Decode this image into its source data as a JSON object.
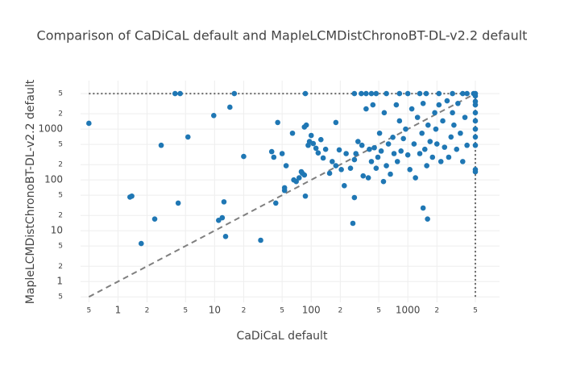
{
  "chart_data": {
    "type": "scatter",
    "title": "Comparison of  CaDiCaL default and  MapleLCMDistChronoBT-DL-v2.2 default",
    "x_label": "CaDiCaL default",
    "y_label": "MapleLCMDistChronoBT-DL-v2.2 default",
    "log_x": true,
    "log_y": true,
    "grid": true,
    "color": "#1f77b4",
    "xlim": [
      0.41,
      8900
    ],
    "ylim": [
      0.39,
      9000
    ],
    "xticks": [
      {
        "value": 0.5,
        "label": "5"
      },
      1,
      2,
      {
        "value": 5,
        "label": "5"
      },
      10,
      {
        "value": 20,
        "label": "2"
      },
      {
        "value": 50,
        "label": "5"
      },
      100,
      {
        "value": 200,
        "label": "2"
      },
      {
        "value": 500,
        "label": "5"
      },
      1000,
      {
        "value": 2000,
        "label": "2"
      },
      {
        "value": 5000,
        "label": "5"
      }
    ],
    "yticks": [
      {
        "value": 0.5,
        "label": "5"
      },
      1,
      2,
      {
        "value": 5,
        "label": "5"
      },
      10,
      {
        "value": 20,
        "label": "2"
      },
      {
        "value": 50,
        "label": "5"
      },
      100,
      {
        "value": 200,
        "label": "2"
      },
      {
        "value": 500,
        "label": "5"
      },
      1000,
      {
        "value": 2000,
        "label": "2"
      },
      {
        "value": 5000,
        "label": "5"
      }
    ],
    "lines": [
      {
        "x": [
          0.5,
          5000
        ],
        "y": [
          0.5,
          5000
        ],
        "dash": "dash",
        "color": "#7f7f7f"
      },
      {
        "x": [
          0.5,
          5000
        ],
        "y": [
          5000,
          5000
        ],
        "dash": "dot",
        "color": "#666666"
      },
      {
        "x": [
          5000,
          5000
        ],
        "y": [
          5000,
          0.5
        ],
        "dash": "dot",
        "color": "#666666"
      }
    ],
    "x": [
      0.5,
      1.33,
      1.39,
      1.74,
      2.4,
      2.8,
      3.9,
      4.4,
      4.2,
      5.3,
      9.8,
      11,
      12,
      12.5,
      13,
      14.4,
      16,
      20,
      30,
      43,
      45,
      53,
      53,
      87,
      87,
      85,
      180,
      280,
      280,
      270,
      330,
      370,
      420,
      470,
      600,
      820,
      1000,
      1330,
      1550,
      2100,
      2900,
      3700,
      4100,
      4800,
      5000,
      1440,
      1600,
      5000,
      5000,
      5000,
      5000,
      5000,
      5000,
      5000,
      5000,
      5000,
      5000,
      39,
      41,
      50,
      55,
      64,
      66,
      70,
      75,
      79,
      81,
      85,
      89,
      93,
      96,
      100,
      105,
      112,
      118,
      126,
      133,
      141,
      155,
      165,
      180,
      195,
      205,
      220,
      230,
      255,
      280,
      290,
      305,
      335,
      345,
      370,
      390,
      400,
      420,
      435,
      450,
      470,
      490,
      510,
      530,
      560,
      570,
      600,
      630,
      660,
      700,
      720,
      760,
      780,
      820,
      850,
      900,
      950,
      1000,
      1050,
      1100,
      1160,
      1200,
      1260,
      1330,
      1400,
      1440,
      1500,
      1570,
      1620,
      1700,
      1800,
      1900,
      1950,
      2000,
      2100,
      2200,
      2300,
      2400,
      2550,
      2650,
      2800,
      2900,
      3000,
      3200,
      3300,
      3500,
      3700,
      3900,
      4100
    ],
    "y": [
      1300,
      46,
      48,
      5.6,
      17,
      480,
      5000,
      5000,
      35,
      700,
      1850,
      16,
      18,
      37,
      7.7,
      2700,
      5000,
      290,
      6.5,
      35,
      1350,
      62,
      70,
      48,
      5000,
      125,
      1350,
      5000,
      45,
      14,
      5000,
      5000,
      5000,
      5000,
      5000,
      5000,
      5000,
      5000,
      5000,
      5000,
      5000,
      5000,
      5000,
      5000,
      5000,
      28,
      17,
      145,
      160,
      4500,
      3500,
      3000,
      2100,
      1450,
      1000,
      700,
      480,
      360,
      280,
      330,
      190,
      830,
      100,
      93,
      110,
      145,
      135,
      1100,
      1200,
      480,
      570,
      750,
      520,
      420,
      340,
      620,
      270,
      400,
      135,
      230,
      190,
      390,
      160,
      77,
      330,
      170,
      250,
      330,
      570,
      480,
      120,
      2500,
      110,
      400,
      230,
      3000,
      430,
      170,
      280,
      830,
      370,
      93,
      2100,
      190,
      510,
      130,
      690,
      330,
      3000,
      230,
      1450,
      370,
      650,
      1000,
      310,
      160,
      2500,
      510,
      110,
      1700,
      330,
      830,
      3200,
      400,
      190,
      1200,
      570,
      280,
      2100,
      1000,
      510,
      3000,
      230,
      1450,
      440,
      3600,
      280,
      700,
      2100,
      1200,
      400,
      3200,
      830,
      230,
      1700,
      480
    ]
  }
}
